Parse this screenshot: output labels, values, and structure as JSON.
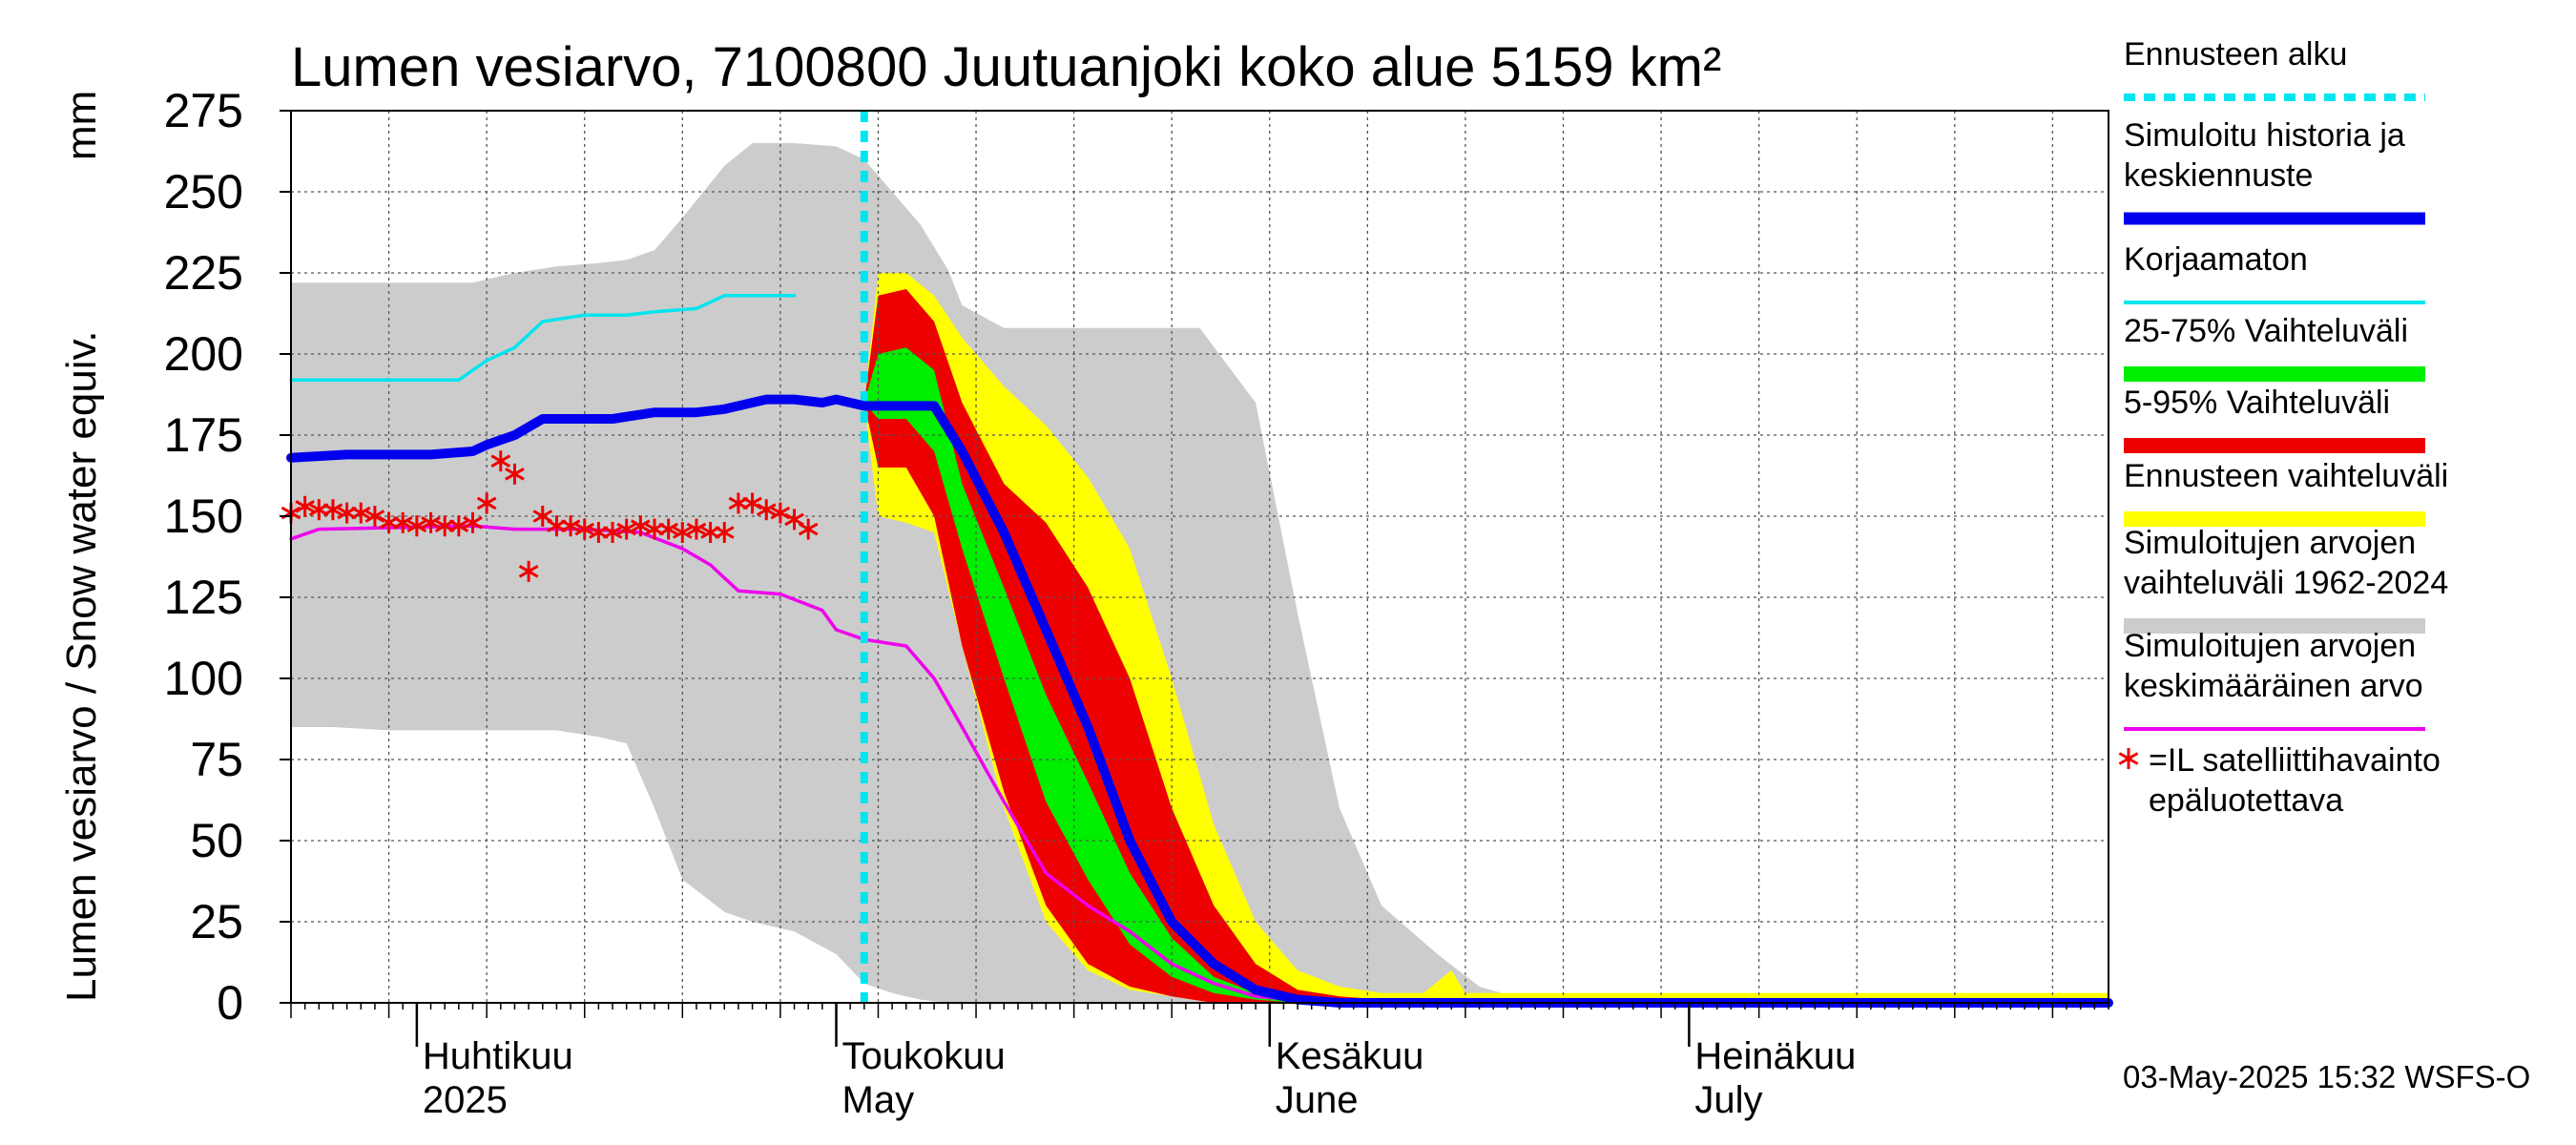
{
  "chart_data": {
    "type": "area",
    "title": "Lumen vesiarvo, 7100800 Juutuanjoki koko alue 5159 km²",
    "ylabel": "Lumen vesiarvo / Snow water equiv.",
    "yunit": "mm",
    "ylim": [
      0,
      275
    ],
    "yticks": [
      0,
      25,
      50,
      75,
      100,
      125,
      150,
      175,
      200,
      225,
      250,
      275
    ],
    "xlim": [
      "2025-03-23",
      "2025-07-31"
    ],
    "grid": true,
    "month_labels": [
      {
        "date": "2025-04-01",
        "line1": "Huhtikuu",
        "line2": "2025"
      },
      {
        "date": "2025-05-01",
        "line1": "Toukokuu",
        "line2": "May"
      },
      {
        "date": "2025-06-01",
        "line1": "Kesäkuu",
        "line2": "June"
      },
      {
        "date": "2025-07-01",
        "line1": "Heinäkuu",
        "line2": "July"
      }
    ],
    "forecast_start": "2025-05-03",
    "timestamp": "03-May-2025 15:32 WSFS-O",
    "legend_position": "right",
    "legend": [
      {
        "key": "forecast_start",
        "label": "Ennusteen alku",
        "color": "#00e5ee"
      },
      {
        "key": "simulated",
        "label": "Simuloitu historia ja keskiennuste",
        "color": "#0000ee"
      },
      {
        "key": "uncorrected",
        "label": "Korjaamaton",
        "color": "#00e5ee"
      },
      {
        "key": "band_25_75",
        "label": "25-75% Vaihteluväli",
        "color": "#00ee00"
      },
      {
        "key": "band_5_95",
        "label": "5-95% Vaihteluväli",
        "color": "#ee0000"
      },
      {
        "key": "band_forecast",
        "label": "Ennusteen vaihteluväli",
        "color": "#ffff00"
      },
      {
        "key": "band_hist",
        "label": "Simuloitujen arvojen vaihteluväli 1962-2024",
        "color": "#cccccc"
      },
      {
        "key": "hist_mean",
        "label": "Simuloitujen arvojen keskimääräinen arvo",
        "color": "#ee00ee"
      },
      {
        "key": "satellite",
        "label": "=IL satelliittihavainto epäluotettava",
        "color": "#ee0000"
      }
    ],
    "series": {
      "hist_range": {
        "x": [
          "2025-03-23",
          "2025-03-26",
          "2025-03-30",
          "2025-04-05",
          "2025-04-08",
          "2025-04-11",
          "2025-04-14",
          "2025-04-16",
          "2025-04-18",
          "2025-04-20",
          "2025-04-23",
          "2025-04-25",
          "2025-04-28",
          "2025-05-01",
          "2025-05-03",
          "2025-05-05",
          "2025-05-07",
          "2025-05-09",
          "2025-05-10",
          "2025-05-13",
          "2025-05-17",
          "2025-05-21",
          "2025-05-24",
          "2025-05-27",
          "2025-05-31",
          "2025-06-03",
          "2025-06-06",
          "2025-06-09",
          "2025-06-13",
          "2025-06-16",
          "2025-06-20",
          "2025-07-31"
        ],
        "upper": [
          222,
          222,
          222,
          222,
          225,
          227,
          228,
          229,
          232,
          242,
          258,
          265,
          265,
          264,
          260,
          250,
          240,
          226,
          215,
          208,
          208,
          208,
          208,
          208,
          185,
          120,
          60,
          30,
          15,
          5,
          0,
          0
        ],
        "lower": [
          85,
          85,
          84,
          84,
          84,
          84,
          82,
          80,
          60,
          38,
          28,
          25,
          22,
          15,
          6,
          3,
          1,
          0,
          0,
          0,
          0,
          0,
          0,
          0,
          0,
          0,
          0,
          0,
          0,
          0,
          0,
          0
        ]
      },
      "forecast_range": {
        "x": [
          "2025-05-03",
          "2025-05-04",
          "2025-05-06",
          "2025-05-08",
          "2025-05-10",
          "2025-05-13",
          "2025-05-16",
          "2025-05-19",
          "2025-05-22",
          "2025-05-25",
          "2025-05-28",
          "2025-05-31",
          "2025-06-03",
          "2025-06-06",
          "2025-06-09",
          "2025-06-12",
          "2025-06-14",
          "2025-06-15",
          "2025-06-17",
          "2025-07-31"
        ],
        "upper": [
          185,
          225,
          225,
          218,
          205,
          190,
          178,
          162,
          140,
          100,
          55,
          25,
          10,
          5,
          3,
          3,
          10,
          3,
          3,
          3
        ],
        "lower": [
          185,
          150,
          148,
          145,
          110,
          60,
          25,
          10,
          4,
          2,
          0,
          0,
          0,
          0,
          0,
          0,
          0,
          0,
          0,
          0
        ]
      },
      "p5_95": {
        "x": [
          "2025-05-03",
          "2025-05-04",
          "2025-05-06",
          "2025-05-08",
          "2025-05-10",
          "2025-05-13",
          "2025-05-16",
          "2025-05-19",
          "2025-05-22",
          "2025-05-25",
          "2025-05-28",
          "2025-05-31",
          "2025-06-03",
          "2025-06-06",
          "2025-06-09",
          "2025-07-31"
        ],
        "upper": [
          185,
          218,
          220,
          210,
          185,
          160,
          148,
          128,
          100,
          60,
          30,
          12,
          4,
          2,
          1,
          1
        ],
        "lower": [
          185,
          165,
          165,
          150,
          110,
          65,
          30,
          12,
          5,
          2,
          0,
          0,
          0,
          0,
          0,
          0
        ]
      },
      "p25_75": {
        "x": [
          "2025-05-03",
          "2025-05-04",
          "2025-05-06",
          "2025-05-08",
          "2025-05-10",
          "2025-05-13",
          "2025-05-16",
          "2025-05-19",
          "2025-05-22",
          "2025-05-25",
          "2025-05-28",
          "2025-05-31",
          "2025-06-03",
          "2025-06-06",
          "2025-07-31"
        ],
        "upper": [
          185,
          200,
          202,
          195,
          160,
          128,
          95,
          68,
          40,
          20,
          8,
          3,
          1,
          1,
          1
        ],
        "lower": [
          185,
          180,
          180,
          170,
          140,
          100,
          62,
          38,
          18,
          8,
          3,
          1,
          0,
          0,
          0
        ]
      },
      "simulated": {
        "x": [
          "2025-03-23",
          "2025-03-27",
          "2025-04-02",
          "2025-04-05",
          "2025-04-06",
          "2025-04-08",
          "2025-04-10",
          "2025-04-13",
          "2025-04-15",
          "2025-04-18",
          "2025-04-21",
          "2025-04-23",
          "2025-04-26",
          "2025-04-28",
          "2025-04-30",
          "2025-05-01",
          "2025-05-03",
          "2025-05-04",
          "2025-05-06",
          "2025-05-08",
          "2025-05-10",
          "2025-05-13",
          "2025-05-16",
          "2025-05-19",
          "2025-05-22",
          "2025-05-25",
          "2025-05-28",
          "2025-05-31",
          "2025-06-03",
          "2025-06-06",
          "2025-07-31"
        ],
        "y": [
          168,
          169,
          169,
          170,
          172,
          175,
          180,
          180,
          180,
          182,
          182,
          183,
          186,
          186,
          185,
          186,
          184,
          184,
          184,
          184,
          170,
          145,
          115,
          85,
          50,
          25,
          12,
          4,
          1,
          0,
          0
        ]
      },
      "uncorrected": {
        "x": [
          "2025-03-23",
          "2025-03-26",
          "2025-04-04",
          "2025-04-06",
          "2025-04-08",
          "2025-04-10",
          "2025-04-13",
          "2025-04-16",
          "2025-04-18",
          "2025-04-21",
          "2025-04-23",
          "2025-04-26",
          "2025-04-28"
        ],
        "y": [
          192,
          192,
          192,
          198,
          202,
          210,
          212,
          212,
          213,
          214,
          218,
          218,
          218
        ]
      },
      "hist_mean": {
        "x": [
          "2025-03-23",
          "2025-03-25",
          "2025-04-05",
          "2025-04-08",
          "2025-04-13",
          "2025-04-17",
          "2025-04-20",
          "2025-04-22",
          "2025-04-24",
          "2025-04-27",
          "2025-04-30",
          "2025-05-01",
          "2025-05-03",
          "2025-05-06",
          "2025-05-08",
          "2025-05-10",
          "2025-05-13",
          "2025-05-16",
          "2025-05-19",
          "2025-05-22",
          "2025-05-25",
          "2025-05-28",
          "2025-05-31",
          "2025-06-03",
          "2025-06-06",
          "2025-07-31"
        ],
        "y": [
          143,
          146,
          147,
          146,
          146,
          145,
          140,
          135,
          127,
          126,
          121,
          115,
          112,
          110,
          100,
          85,
          62,
          40,
          30,
          22,
          12,
          6,
          2,
          1,
          0,
          0
        ]
      },
      "satellite": {
        "x": [
          "2025-03-23",
          "2025-03-24",
          "2025-03-25",
          "2025-03-26",
          "2025-03-27",
          "2025-03-28",
          "2025-03-29",
          "2025-03-30",
          "2025-03-31",
          "2025-04-01",
          "2025-04-02",
          "2025-04-03",
          "2025-04-04",
          "2025-04-05",
          "2025-04-06",
          "2025-04-07",
          "2025-04-08",
          "2025-04-09",
          "2025-04-10",
          "2025-04-11",
          "2025-04-12",
          "2025-04-13",
          "2025-04-14",
          "2025-04-15",
          "2025-04-16",
          "2025-04-17",
          "2025-04-18",
          "2025-04-19",
          "2025-04-20",
          "2025-04-21",
          "2025-04-22",
          "2025-04-23",
          "2025-04-24",
          "2025-04-25",
          "2025-04-26",
          "2025-04-27",
          "2025-04-28",
          "2025-04-29"
        ],
        "y": [
          151,
          153,
          152,
          152,
          151,
          151,
          150,
          148,
          148,
          147,
          148,
          147,
          147,
          148,
          154,
          167,
          163,
          133,
          150,
          147,
          147,
          146,
          145,
          145,
          146,
          147,
          146,
          146,
          145,
          146,
          145,
          145,
          154,
          154,
          152,
          151,
          149,
          146
        ]
      }
    }
  }
}
